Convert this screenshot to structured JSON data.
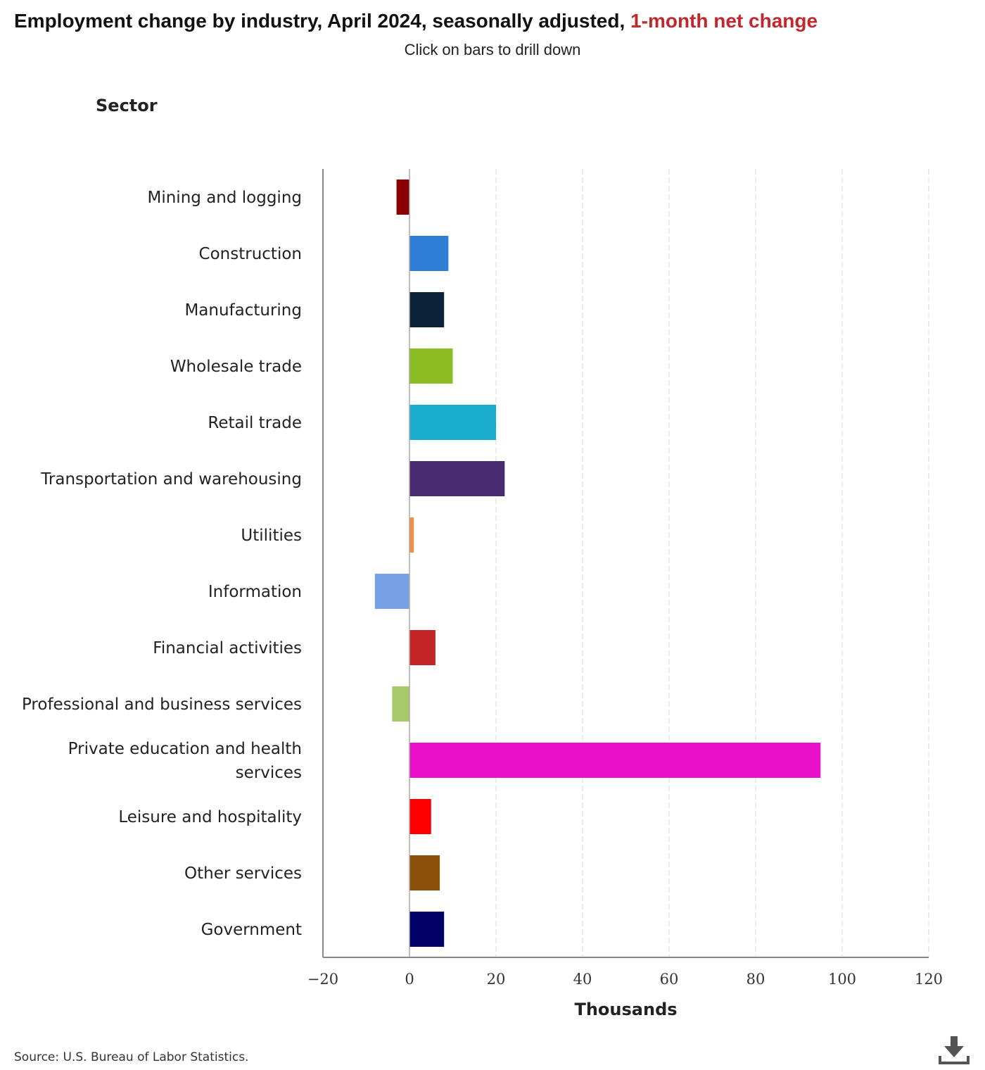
{
  "title": {
    "main": "Employment change by industry, April 2024, seasonally adjusted, ",
    "highlight": "1-month net change"
  },
  "subtitle": "Click on bars to drill down",
  "source": "Source: U.S. Bureau of Labor Statistics.",
  "download_icon": "download-icon",
  "colors": {
    "highlight": "#c1272d",
    "grid": "#d9d9d9",
    "axis": "#888888"
  },
  "chart_data": {
    "type": "bar",
    "orientation": "horizontal",
    "ylabel": "Sector",
    "xlabel": "Thousands",
    "xlim": [
      -20,
      120
    ],
    "xticks": [
      -20,
      0,
      20,
      40,
      60,
      80,
      100,
      120
    ],
    "xtick_labels": [
      "−20",
      "0",
      "20",
      "40",
      "60",
      "80",
      "100",
      "120"
    ],
    "grid": "vertical dashed",
    "categories": [
      "Mining and logging",
      "Construction",
      "Manufacturing",
      "Wholesale trade",
      "Retail trade",
      "Transportation and warehousing",
      "Utilities",
      "Information",
      "Financial activities",
      "Professional and business services",
      "Private education and health services",
      "Leisure and hospitality",
      "Other services",
      "Government"
    ],
    "values": [
      -3,
      9,
      8,
      10,
      20,
      22,
      1,
      -8,
      6,
      -4,
      95,
      5,
      7,
      8
    ],
    "bar_colors": [
      "#8b0000",
      "#2f7ed8",
      "#0d233a",
      "#8bbc21",
      "#1aadce",
      "#492970",
      "#f28f43",
      "#77a1e5",
      "#c42525",
      "#a6c96a",
      "#e811c9",
      "#ff0000",
      "#8b5009",
      "#000066"
    ]
  }
}
